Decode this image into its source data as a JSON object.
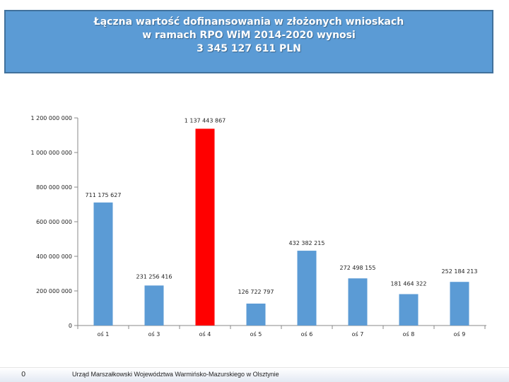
{
  "header": {
    "title_lines": [
      "Łączna wartość dofinansowania w złożonych wnioskach",
      "w ramach RPO WiM 2014-2020  wynosi",
      "3 345 127 611 PLN"
    ]
  },
  "chart_data": {
    "type": "bar",
    "title": "Łączna wartość dofinansowania w złożonych wnioskach w ramach RPO WiM 2014-2020 wynosi 3 345 127 611 PLN",
    "categories": [
      "oś 1",
      "oś 3",
      "oś 4",
      "oś 5",
      "oś 6",
      "oś 7",
      "oś 8",
      "oś 9"
    ],
    "values": [
      711175627,
      231256416,
      1137443867,
      126722797,
      432382215,
      272498155,
      181464322,
      252184213
    ],
    "value_labels": [
      "711 175 627",
      "231 256 416",
      "1 137 443 867",
      "126 722 797",
      "432 382 215",
      "272 498 155",
      "181 464 322",
      "252 184 213"
    ],
    "colors": [
      "#5b9bd5",
      "#5b9bd5",
      "#ff0000",
      "#5b9bd5",
      "#5b9bd5",
      "#5b9bd5",
      "#5b9bd5",
      "#5b9bd5"
    ],
    "y_ticks": [
      0,
      200000000,
      400000000,
      600000000,
      800000000,
      1000000000,
      1200000000
    ],
    "y_tick_labels": [
      "0",
      "200 000 000",
      "400 000 000",
      "600 000 000",
      "800 000 000",
      "1 000 000 000",
      "1 200 000 000"
    ],
    "ylim": [
      0,
      1200000000
    ],
    "xlabel": "",
    "ylabel": "",
    "grid": false
  },
  "footer": {
    "page_number": "0",
    "institution": "Urząd Marszałkowski Województwa Warmińsko-Mazurskiego w Olsztynie"
  }
}
